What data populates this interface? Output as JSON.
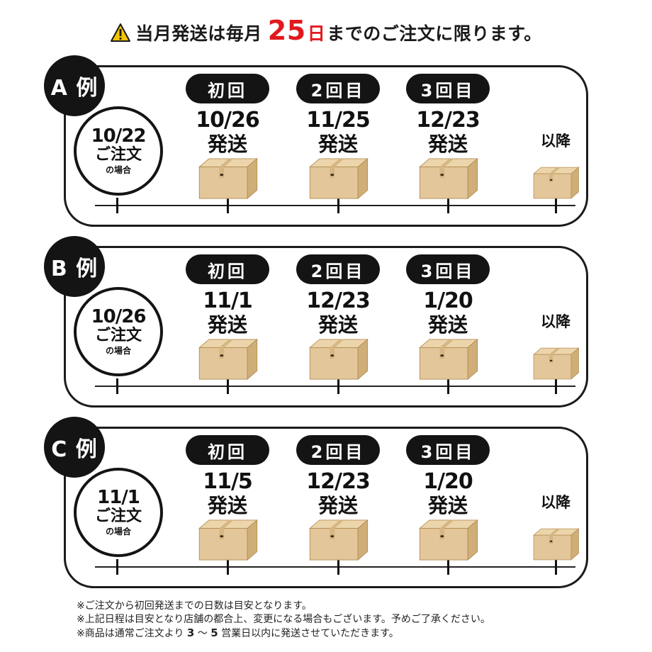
{
  "headline": {
    "prefix": "当月発送は毎月",
    "day": "25",
    "day_unit": "日",
    "suffix": "までのご注文に限ります。"
  },
  "colors": {
    "accent": "#e0191e",
    "badge": "#141414",
    "box": "#e3c79a",
    "box_side": "#cfae78",
    "warn": "#f3c400"
  },
  "examples": [
    {
      "label": "A 例",
      "order_date": "10/22",
      "order_line1": "ご注文",
      "order_line2": "の場合",
      "shipments": [
        {
          "pill": "初回",
          "date": "10/26",
          "ship": "発送"
        },
        {
          "pill": "2回目",
          "date": "11/25",
          "ship": "発送"
        },
        {
          "pill": "3回目",
          "date": "12/23",
          "ship": "発送"
        }
      ],
      "after": "以降"
    },
    {
      "label": "B 例",
      "order_date": "10/26",
      "order_line1": "ご注文",
      "order_line2": "の場合",
      "shipments": [
        {
          "pill": "初回",
          "date": "11/1",
          "ship": "発送"
        },
        {
          "pill": "2回目",
          "date": "12/23",
          "ship": "発送"
        },
        {
          "pill": "3回目",
          "date": "1/20",
          "ship": "発送"
        }
      ],
      "after": "以降"
    },
    {
      "label": "C 例",
      "order_date": "11/1",
      "order_line1": "ご注文",
      "order_line2": "の場合",
      "shipments": [
        {
          "pill": "初回",
          "date": "11/5",
          "ship": "発送"
        },
        {
          "pill": "2回目",
          "date": "12/23",
          "ship": "発送"
        },
        {
          "pill": "3回目",
          "date": "1/20",
          "ship": "発送"
        }
      ],
      "after": "以降"
    }
  ],
  "notes": {
    "line1": "※ご注文から初回発送までの日数は目安となります。",
    "line2": "※上記日程は目安となり店舗の都合上、変更になる場合もございます。予めご了承ください。",
    "line3_prefix": "※商品は通常ご注文より",
    "line3_from": "3",
    "line3_tilde": "～",
    "line3_to": "5",
    "line3_suffix": "営業日以内に発送させていただきます。"
  }
}
